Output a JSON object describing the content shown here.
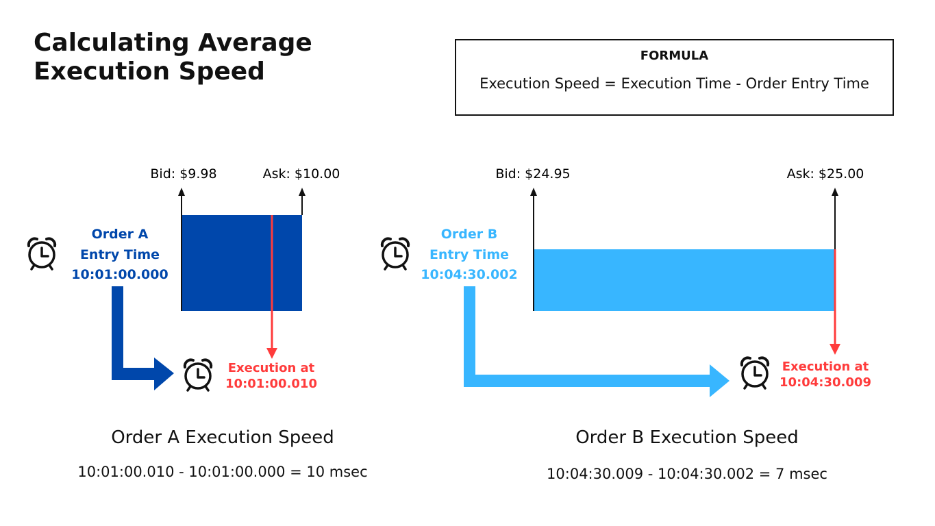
{
  "title": {
    "line1": "Calculating Average",
    "line2": "Execution Speed"
  },
  "formula": {
    "heading": "FORMULA",
    "text": "Execution Speed = Execution Time - Order Entry Time"
  },
  "colors": {
    "order_a": "#0047ab",
    "order_b": "#38b6ff",
    "execution": "#ff3b3b",
    "line": "#111111"
  },
  "icons": [
    "alarm-clock-icon"
  ],
  "order_a": {
    "bid": "Bid: $9.98",
    "ask": "Ask: $10.00",
    "label_line1": "Order A",
    "label_line2": "Entry Time",
    "entry_time": "10:01:00.000",
    "exec_line1": "Execution at",
    "exec_time": "10:01:00.010",
    "summary_title": "Order A Execution Speed",
    "summary_calc": "10:01:00.010 - 10:01:00.000 = 10 msec"
  },
  "order_b": {
    "bid": "Bid: $24.95",
    "ask": "Ask: $25.00",
    "label_line1": "Order B",
    "label_line2": "Entry Time",
    "entry_time": "10:04:30.002",
    "exec_line1": "Execution at",
    "exec_time": "10:04:30.009",
    "summary_title": "Order B Execution Speed",
    "summary_calc": "10:04:30.009 - 10:04:30.002 = 7 msec"
  }
}
